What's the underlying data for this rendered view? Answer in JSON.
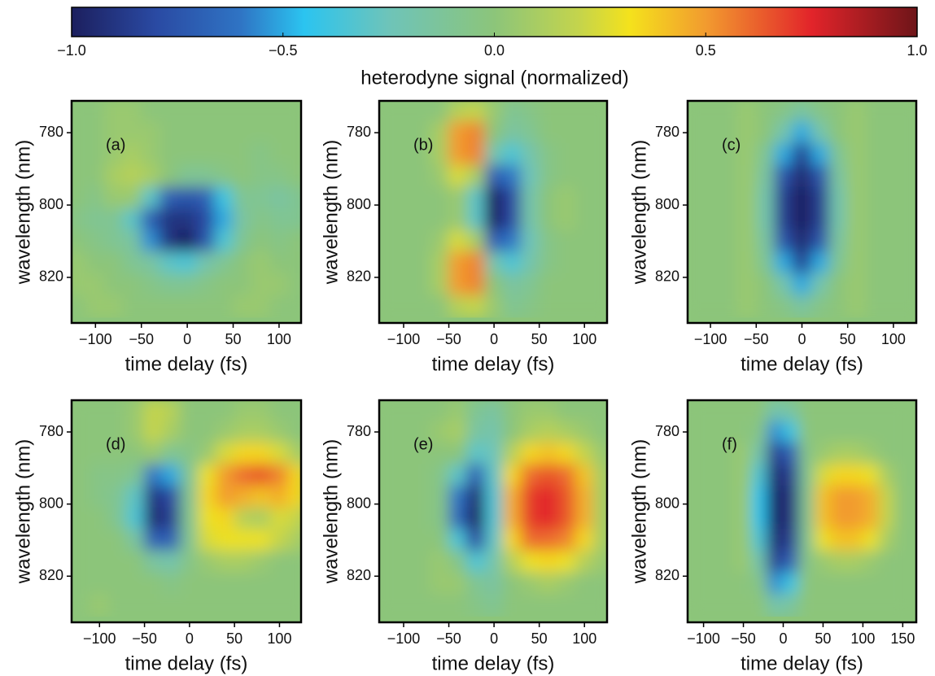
{
  "colorbar": {
    "label": "heterodyne signal (normalized)",
    "lim": [
      -1,
      1
    ],
    "ticks": [
      {
        "value": -1,
        "label": "−1.0"
      },
      {
        "value": -0.5,
        "label": "−0.5"
      },
      {
        "value": 0,
        "label": "0.0"
      },
      {
        "value": 0.5,
        "label": "0.5"
      },
      {
        "value": 1,
        "label": "1.0"
      }
    ],
    "colorscale": [
      [
        -1,
        "#1c1f5e"
      ],
      [
        -0.8,
        "#2a4aa3"
      ],
      [
        -0.6,
        "#2f74c4"
      ],
      [
        -0.45,
        "#2bc4f0"
      ],
      [
        -0.25,
        "#6ec4b9"
      ],
      [
        0,
        "#8cc57a"
      ],
      [
        0.2,
        "#c4d44c"
      ],
      [
        0.32,
        "#f4e21c"
      ],
      [
        0.5,
        "#f29b2f"
      ],
      [
        0.75,
        "#e2242a"
      ],
      [
        1,
        "#6e1519"
      ]
    ]
  },
  "chart_data": [
    {
      "type": "heatmap",
      "annotation": "(a)",
      "xlabel": "time delay (fs)",
      "ylabel": "wavelength (nm)",
      "xlim": [
        -126,
        124
      ],
      "ylim": [
        832.6,
        771.2
      ],
      "xticks": [
        {
          "value": -100,
          "label": "−100"
        },
        {
          "value": -50,
          "label": "−50"
        },
        0,
        50,
        100
      ],
      "yticks": [
        780,
        800,
        820
      ],
      "x": [
        -120,
        -100,
        -80,
        -60,
        -40,
        -20,
        0,
        20,
        40,
        60,
        80,
        100,
        120
      ],
      "y": [
        774,
        780,
        786,
        792,
        798,
        804,
        810,
        816,
        822,
        828
      ],
      "z": [
        [
          0,
          0,
          0.05,
          0.05,
          0,
          0,
          0,
          0,
          0,
          0,
          0,
          0,
          0
        ],
        [
          0,
          0,
          0.05,
          0.05,
          0.05,
          0,
          0,
          0,
          0,
          0,
          0,
          0,
          0
        ],
        [
          0,
          0,
          0.05,
          0.1,
          0.05,
          0,
          0,
          0,
          0,
          0,
          -0.05,
          0,
          0
        ],
        [
          0,
          0,
          0.1,
          0.15,
          0.1,
          0,
          -0.1,
          -0.1,
          -0.05,
          0,
          -0.05,
          -0.05,
          0
        ],
        [
          0,
          -0.05,
          0.05,
          0.05,
          -0.3,
          -0.7,
          -0.75,
          -0.7,
          -0.4,
          -0.1,
          -0.1,
          -0.15,
          -0.1
        ],
        [
          -0.05,
          -0.1,
          -0.1,
          -0.3,
          -0.7,
          -0.9,
          -0.9,
          -0.8,
          -0.5,
          -0.15,
          -0.05,
          -0.1,
          -0.1
        ],
        [
          0,
          -0.05,
          -0.1,
          -0.15,
          -0.55,
          -0.9,
          -1,
          -0.75,
          -0.35,
          -0.1,
          0,
          -0.05,
          0
        ],
        [
          0.05,
          0,
          0,
          -0.1,
          -0.15,
          -0.3,
          -0.35,
          -0.2,
          -0.1,
          0,
          0.05,
          0,
          0
        ],
        [
          0.05,
          0.05,
          0,
          0,
          -0.05,
          -0.1,
          -0.1,
          -0.05,
          0,
          0,
          0.05,
          0.05,
          0
        ],
        [
          0,
          0.05,
          0.05,
          0,
          0,
          0,
          0,
          0,
          0,
          0.05,
          0.05,
          0,
          0
        ]
      ]
    },
    {
      "type": "heatmap",
      "annotation": "(b)",
      "xlabel": "time delay (fs)",
      "ylabel": "wavelength (nm)",
      "xlim": [
        -127,
        125
      ],
      "ylim": [
        832.6,
        771.2
      ],
      "xticks": [
        {
          "value": -100,
          "label": "−100"
        },
        {
          "value": -50,
          "label": "−50"
        },
        0,
        50,
        100
      ],
      "yticks": [
        780,
        800,
        820
      ],
      "x": [
        -120,
        -100,
        -80,
        -60,
        -40,
        -20,
        0,
        20,
        40,
        60,
        80,
        100,
        120
      ],
      "y": [
        774,
        780,
        786,
        792,
        798,
        804,
        810,
        816,
        822,
        828
      ],
      "z": [
        [
          0,
          0,
          0,
          0,
          0.15,
          0.2,
          0.05,
          -0.1,
          -0.05,
          0,
          0,
          0,
          0
        ],
        [
          0,
          0,
          0,
          0.1,
          0.5,
          0.55,
          0,
          -0.15,
          -0.1,
          0,
          0,
          0,
          0
        ],
        [
          0,
          0,
          0,
          0.1,
          0.5,
          0.55,
          -0.2,
          -0.35,
          -0.2,
          -0.05,
          0,
          0,
          0
        ],
        [
          0,
          0,
          0,
          0.05,
          0.25,
          0.1,
          -0.7,
          -0.6,
          -0.25,
          -0.05,
          0,
          0,
          0
        ],
        [
          0,
          0,
          0,
          0,
          0.05,
          -0.3,
          -1,
          -0.8,
          -0.2,
          0,
          0.05,
          0,
          0
        ],
        [
          0,
          0,
          0,
          0,
          0.05,
          -0.3,
          -1,
          -0.8,
          -0.2,
          0,
          0.05,
          0,
          0
        ],
        [
          0,
          0,
          0,
          0.05,
          0.25,
          0.1,
          -0.7,
          -0.6,
          -0.25,
          -0.05,
          0,
          0,
          0
        ],
        [
          0,
          0,
          0,
          0.1,
          0.5,
          0.55,
          -0.2,
          -0.35,
          -0.2,
          -0.05,
          0,
          0,
          0
        ],
        [
          0,
          0,
          0,
          0.1,
          0.5,
          0.55,
          0,
          -0.15,
          -0.1,
          0,
          0,
          0,
          0
        ],
        [
          0,
          0,
          0,
          0,
          0.15,
          0.2,
          0.05,
          -0.1,
          -0.05,
          0,
          0,
          0,
          0
        ]
      ]
    },
    {
      "type": "heatmap",
      "annotation": "(c)",
      "xlabel": "time delay (fs)",
      "ylabel": "wavelength (nm)",
      "xlim": [
        -125,
        125
      ],
      "ylim": [
        832.6,
        771.2
      ],
      "xticks": [
        {
          "value": -100,
          "label": "−100"
        },
        {
          "value": -50,
          "label": "−50"
        },
        0,
        50,
        100
      ],
      "yticks": [
        780,
        800,
        820
      ],
      "x": [
        -120,
        -100,
        -80,
        -60,
        -40,
        -20,
        0,
        20,
        40,
        60,
        80,
        100,
        120
      ],
      "y": [
        774,
        780,
        786,
        792,
        798,
        804,
        810,
        816,
        822,
        828
      ],
      "z": [
        [
          0,
          0,
          0,
          0.05,
          0,
          -0.05,
          -0.15,
          -0.05,
          0,
          0.05,
          0,
          0,
          0
        ],
        [
          0,
          0,
          0,
          0.05,
          0,
          -0.2,
          -0.5,
          -0.2,
          0,
          0.05,
          0,
          0,
          0
        ],
        [
          0,
          0,
          0,
          0.05,
          -0.1,
          -0.5,
          -0.85,
          -0.5,
          -0.1,
          0.05,
          0,
          0,
          0
        ],
        [
          0,
          0,
          0,
          0.05,
          -0.15,
          -0.75,
          -0.95,
          -0.75,
          -0.15,
          0.05,
          0,
          0,
          0
        ],
        [
          0,
          0,
          0,
          0.05,
          -0.2,
          -0.85,
          -1,
          -0.85,
          -0.2,
          0.05,
          0,
          0,
          0
        ],
        [
          0,
          0,
          0,
          0.05,
          -0.2,
          -0.85,
          -1,
          -0.85,
          -0.2,
          0.05,
          0,
          0,
          0
        ],
        [
          0,
          0,
          0,
          0.05,
          -0.15,
          -0.75,
          -0.95,
          -0.75,
          -0.15,
          0.05,
          0,
          0,
          0
        ],
        [
          0,
          0,
          0,
          0.05,
          -0.1,
          -0.5,
          -0.85,
          -0.5,
          -0.1,
          0.05,
          0,
          0,
          0
        ],
        [
          0,
          0,
          0,
          0.05,
          0,
          -0.2,
          -0.5,
          -0.2,
          0,
          0.05,
          0,
          0,
          0
        ],
        [
          0,
          0,
          0,
          0.05,
          0,
          -0.05,
          -0.15,
          -0.05,
          0,
          0.05,
          0,
          0,
          0
        ]
      ]
    },
    {
      "type": "heatmap",
      "annotation": "(d)",
      "xlabel": "time delay (fs)",
      "ylabel": "wavelength (nm)",
      "xlim": [
        -131,
        124
      ],
      "ylim": [
        832.8,
        771.2
      ],
      "xticks": [
        {
          "value": -100,
          "label": "−100"
        },
        {
          "value": -50,
          "label": "−50"
        },
        0,
        50,
        100
      ],
      "yticks": [
        780,
        800,
        820
      ],
      "x": [
        -120,
        -100,
        -80,
        -60,
        -40,
        -20,
        0,
        20,
        40,
        60,
        80,
        100,
        120
      ],
      "y": [
        774,
        780,
        786,
        792,
        798,
        804,
        810,
        816,
        822,
        828
      ],
      "z": [
        [
          0,
          0,
          0,
          0.05,
          0.2,
          0.15,
          0,
          0,
          0,
          0.05,
          0.05,
          0,
          0
        ],
        [
          0,
          0,
          0,
          0.05,
          0.2,
          0.1,
          0,
          0,
          0.05,
          0.1,
          0.1,
          0.05,
          0
        ],
        [
          0,
          0,
          0,
          0,
          0.05,
          -0.1,
          -0.05,
          0.05,
          0.25,
          0.35,
          0.35,
          0.25,
          0.1
        ],
        [
          0,
          -0.05,
          -0.05,
          -0.1,
          -0.6,
          -0.5,
          -0.1,
          0.3,
          0.5,
          0.6,
          0.65,
          0.55,
          0.35
        ],
        [
          0,
          -0.05,
          -0.1,
          -0.3,
          -0.9,
          -0.8,
          -0.1,
          0.35,
          0.5,
          0.45,
          0.4,
          0.45,
          0.35
        ],
        [
          0,
          0,
          -0.1,
          -0.35,
          -0.95,
          -0.85,
          -0.1,
          0.3,
          0.35,
          0.15,
          0.1,
          0.25,
          0.2
        ],
        [
          0,
          0,
          0,
          -0.15,
          -0.7,
          -0.7,
          -0.1,
          0.25,
          0.3,
          0.3,
          0.3,
          0.2,
          0.1
        ],
        [
          0,
          0,
          0,
          0,
          -0.15,
          -0.2,
          -0.05,
          0.05,
          0.1,
          0.1,
          0.05,
          0,
          0
        ],
        [
          0,
          0,
          0,
          0,
          0,
          -0.05,
          0,
          0,
          0,
          0,
          0,
          0,
          0
        ],
        [
          0,
          0.05,
          0,
          0,
          0,
          0,
          0,
          0,
          0,
          0,
          0,
          0,
          0
        ]
      ]
    },
    {
      "type": "heatmap",
      "annotation": "(e)",
      "xlabel": "time delay (fs)",
      "ylabel": "wavelength (nm)",
      "xlim": [
        -127,
        125
      ],
      "ylim": [
        832.8,
        771.2
      ],
      "xticks": [
        {
          "value": -100,
          "label": "−100"
        },
        {
          "value": -50,
          "label": "−50"
        },
        0,
        50,
        100
      ],
      "yticks": [
        780,
        800,
        820
      ],
      "x": [
        -120,
        -100,
        -80,
        -60,
        -40,
        -20,
        0,
        20,
        40,
        60,
        80,
        100,
        120
      ],
      "y": [
        774,
        780,
        786,
        792,
        798,
        804,
        810,
        816,
        822,
        828
      ],
      "z": [
        [
          0,
          0,
          0,
          0,
          0.05,
          -0.1,
          -0.15,
          0,
          0.05,
          0.05,
          0,
          0,
          0
        ],
        [
          0,
          0,
          0,
          0.05,
          0.1,
          -0.15,
          -0.2,
          0,
          0.1,
          0.15,
          0.1,
          0.05,
          0
        ],
        [
          0,
          0,
          0,
          0,
          0,
          -0.3,
          -0.25,
          0.15,
          0.35,
          0.4,
          0.35,
          0.2,
          0.05
        ],
        [
          0,
          0,
          0,
          -0.05,
          -0.3,
          -0.7,
          -0.3,
          0.35,
          0.6,
          0.65,
          0.6,
          0.4,
          0.1
        ],
        [
          0,
          0,
          0,
          -0.05,
          -0.6,
          -0.95,
          -0.35,
          0.45,
          0.7,
          0.75,
          0.65,
          0.45,
          0.1
        ],
        [
          0,
          0,
          0,
          -0.05,
          -0.65,
          -1,
          -0.35,
          0.45,
          0.7,
          0.75,
          0.65,
          0.45,
          0.1
        ],
        [
          0,
          0,
          0,
          0,
          -0.35,
          -0.8,
          -0.3,
          0.35,
          0.6,
          0.6,
          0.55,
          0.35,
          0.1
        ],
        [
          0,
          0,
          0,
          0.05,
          -0.05,
          -0.35,
          -0.2,
          0.15,
          0.3,
          0.35,
          0.3,
          0.15,
          0.05
        ],
        [
          0,
          0,
          0,
          0.05,
          0.05,
          -0.1,
          -0.15,
          0,
          0.05,
          0.1,
          0.05,
          0,
          0
        ],
        [
          0,
          0,
          0,
          0,
          0,
          -0.05,
          -0.1,
          0,
          0,
          0,
          0,
          0,
          0
        ]
      ]
    },
    {
      "type": "heatmap",
      "annotation": "(f)",
      "xlabel": "time delay (fs)",
      "ylabel": "wavelength (nm)",
      "xlim": [
        -120,
        167
      ],
      "ylim": [
        832.8,
        771.2
      ],
      "xticks": [
        {
          "value": -100,
          "label": "−100"
        },
        {
          "value": -50,
          "label": "−50"
        },
        0,
        50,
        100,
        150
      ],
      "yticks": [
        780,
        800,
        820
      ],
      "x": [
        -110,
        -90,
        -70,
        -50,
        -30,
        -10,
        10,
        30,
        50,
        70,
        90,
        110,
        130,
        150
      ],
      "y": [
        774,
        780,
        786,
        792,
        798,
        804,
        810,
        816,
        822,
        828
      ],
      "z": [
        [
          0,
          0,
          0,
          0,
          0,
          -0.2,
          -0.15,
          0,
          0,
          0,
          0,
          0,
          0,
          0
        ],
        [
          0,
          0,
          0,
          0,
          -0.05,
          -0.55,
          -0.4,
          0,
          0,
          0,
          0,
          0,
          0,
          0
        ],
        [
          0,
          0,
          0,
          0.05,
          -0.2,
          -0.85,
          -0.7,
          -0.05,
          0.05,
          0.1,
          0.1,
          0.05,
          0,
          0
        ],
        [
          0,
          0,
          0,
          0.05,
          -0.35,
          -0.95,
          -0.85,
          -0.1,
          0.25,
          0.35,
          0.35,
          0.3,
          0.1,
          0
        ],
        [
          0,
          0,
          0,
          0.05,
          -0.45,
          -1,
          -0.9,
          -0.1,
          0.4,
          0.5,
          0.5,
          0.45,
          0.2,
          0
        ],
        [
          0,
          0,
          0,
          0.05,
          -0.45,
          -1,
          -0.9,
          -0.1,
          0.4,
          0.5,
          0.5,
          0.45,
          0.2,
          0
        ],
        [
          0,
          0,
          0,
          0.05,
          -0.35,
          -0.95,
          -0.85,
          -0.1,
          0.3,
          0.4,
          0.4,
          0.3,
          0.1,
          0
        ],
        [
          0,
          0,
          0,
          0.05,
          -0.2,
          -0.85,
          -0.7,
          -0.05,
          0.05,
          0.1,
          0.1,
          0.05,
          0,
          0
        ],
        [
          0,
          0,
          0,
          0,
          -0.05,
          -0.55,
          -0.4,
          0,
          0,
          0,
          0,
          0,
          0,
          0
        ],
        [
          0,
          0,
          0,
          0,
          0,
          -0.2,
          -0.15,
          0,
          0,
          0,
          0,
          0,
          0,
          0
        ]
      ]
    }
  ]
}
